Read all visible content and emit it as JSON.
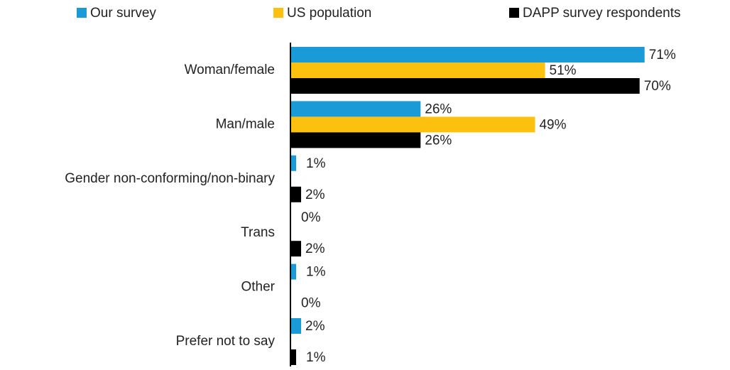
{
  "chart_data": {
    "type": "hbar",
    "categories": [
      "Woman/female",
      "Man/male",
      "Gender non-conforming/non-binary",
      "Trans",
      "Other",
      "Prefer not to say"
    ],
    "series": [
      {
        "name": "Our survey",
        "color": "#1a9ad6",
        "values": [
          71,
          26,
          1,
          0,
          1,
          2
        ],
        "value_labels": [
          "71%",
          "26%",
          "1%",
          "0%",
          "1%",
          "2%"
        ]
      },
      {
        "name": "US population",
        "color": "#fcc00f",
        "values": [
          51,
          49,
          null,
          null,
          null,
          null
        ],
        "value_labels": [
          "51%",
          "49%",
          null,
          null,
          null,
          null
        ]
      },
      {
        "name": "DAPP survey respondents",
        "color": "#000000",
        "values": [
          70,
          26,
          2,
          2,
          0,
          1
        ],
        "value_labels": [
          "70%",
          "26%",
          "2%",
          "2%",
          "0%",
          "1%"
        ]
      }
    ],
    "legend": "top"
  }
}
